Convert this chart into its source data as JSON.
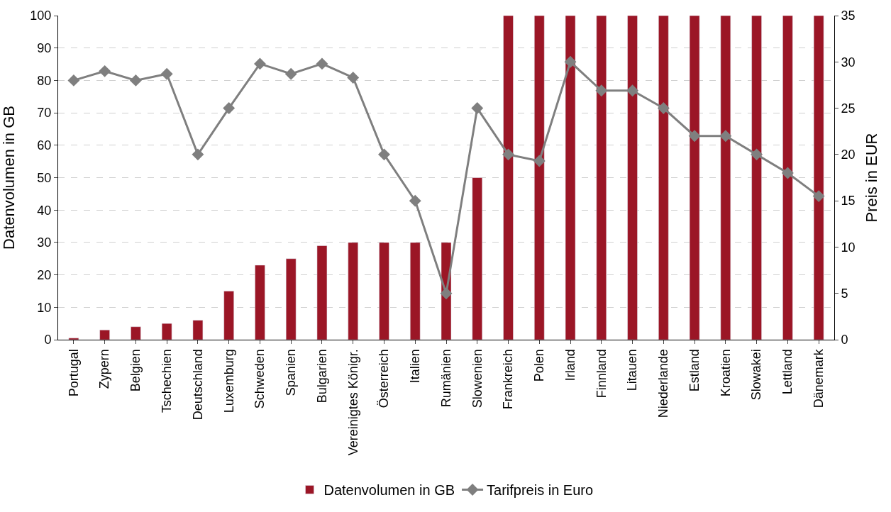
{
  "chart_data": {
    "type": "bar",
    "ylabel": "Datenvolumen in GB",
    "y2label": "Preis in EUR",
    "categories": [
      "Portugal",
      "Zypern",
      "Belgien",
      "Tschechien",
      "Deutschland",
      "Luxemburg",
      "Schweden",
      "Spanien",
      "Bulgarien",
      "Vereinigtes Königr.",
      "Österreich",
      "Italien",
      "Rumänien",
      "Slowenien",
      "Frankreich",
      "Polen",
      "Irland",
      "Finnland",
      "Litauen",
      "Niederlande",
      "Estland",
      "Kroatien",
      "Slowakei",
      "Lettland",
      "Dänemark"
    ],
    "series": [
      {
        "name": "Datenvolumen in GB",
        "color": "#9b1626",
        "values": [
          0.5,
          3,
          4,
          5,
          6,
          15,
          23,
          25,
          29,
          30,
          30,
          30,
          30,
          50,
          100,
          100,
          100,
          100,
          100,
          100,
          100,
          100,
          100,
          100,
          100
        ]
      },
      {
        "name": "Tarifpreis in Euro",
        "type": "line",
        "axis": "y2",
        "color": "#7f7f7f",
        "marker": "diamond",
        "values": [
          28,
          29,
          28,
          28.7,
          20,
          25,
          29.8,
          28.7,
          29.8,
          28.3,
          20,
          15,
          5,
          25,
          20,
          19.3,
          30,
          26.9,
          26.9,
          25,
          22,
          22,
          20,
          18,
          15.5
        ]
      }
    ],
    "ylim": [
      0,
      100
    ],
    "yticks": [
      0,
      10,
      20,
      30,
      40,
      50,
      60,
      70,
      80,
      90,
      100
    ],
    "y2lim": [
      0,
      35
    ],
    "y2ticks": [
      0,
      5,
      10,
      15,
      20,
      25,
      30,
      35
    ],
    "grid": "y",
    "legend": "bottom"
  }
}
